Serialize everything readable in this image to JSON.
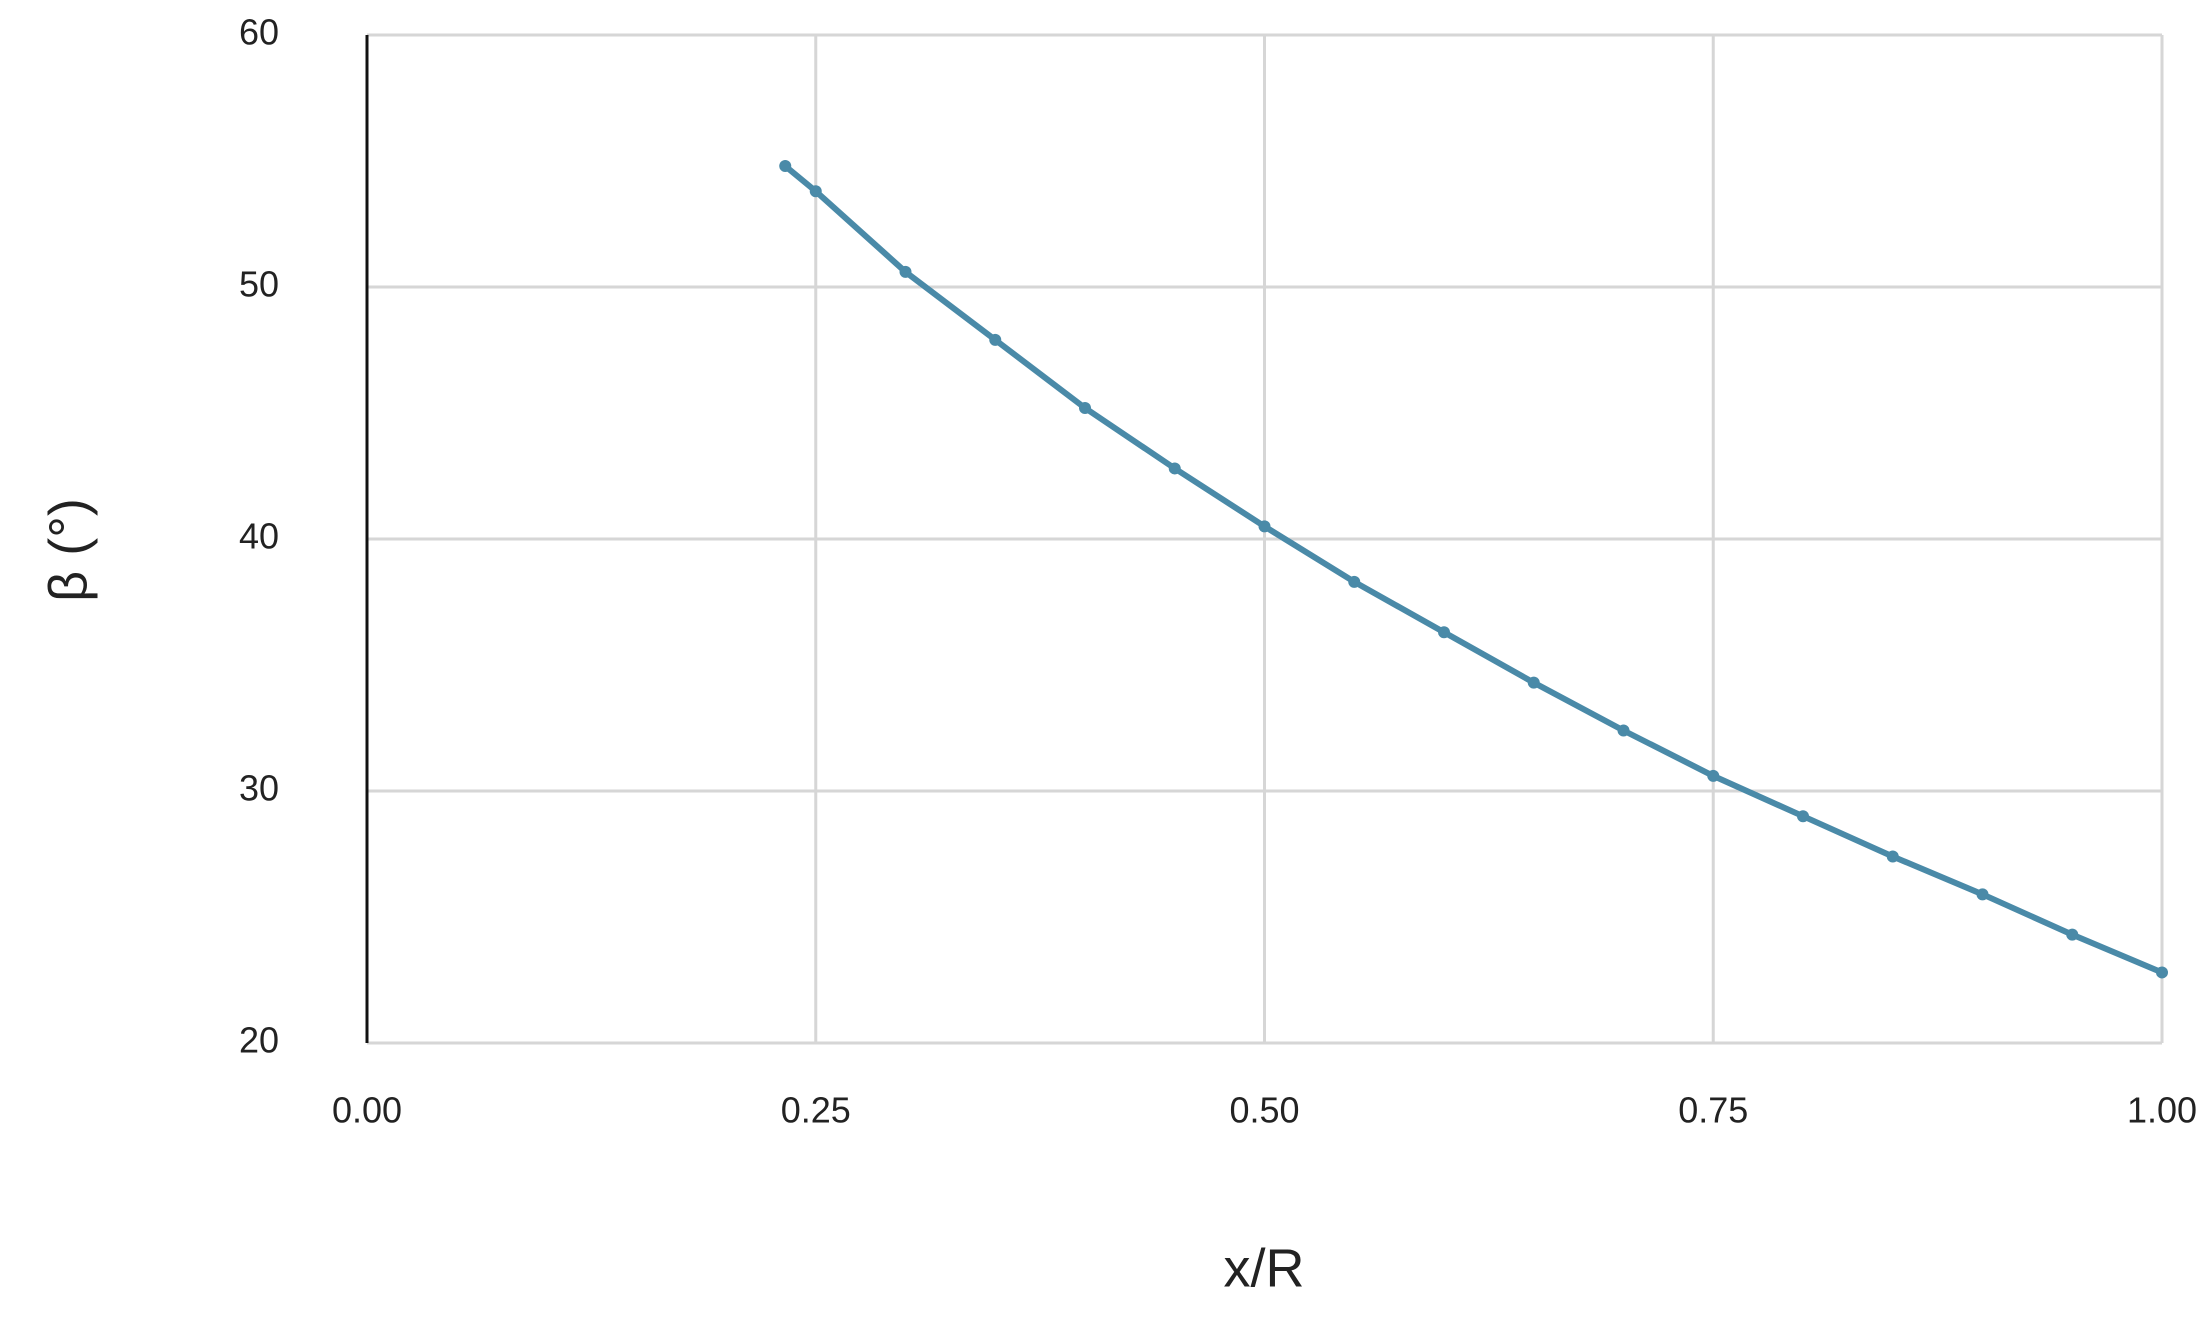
{
  "chart_data": {
    "type": "line",
    "xlabel": "x/R",
    "ylabel": "β (°)",
    "x": [
      0.233,
      0.25,
      0.3,
      0.35,
      0.4,
      0.45,
      0.5,
      0.55,
      0.6,
      0.65,
      0.7,
      0.75,
      0.8,
      0.85,
      0.9,
      0.95,
      1.0
    ],
    "values": [
      54.8,
      53.8,
      50.6,
      47.9,
      45.2,
      42.8,
      40.5,
      38.3,
      36.3,
      34.3,
      32.4,
      30.6,
      29.0,
      27.4,
      25.9,
      24.3,
      22.8
    ],
    "color": "#4a8aa8",
    "xlim": [
      0,
      1
    ],
    "ylim": [
      20,
      60
    ],
    "xticks": [
      {
        "value": 0,
        "label": "0.00"
      },
      0.25,
      {
        "value": 0.5,
        "label": "0.50"
      },
      0.75,
      {
        "value": 1,
        "label": "1.00"
      }
    ],
    "yticks": [
      20,
      30,
      40,
      50,
      60
    ],
    "grid": true
  }
}
